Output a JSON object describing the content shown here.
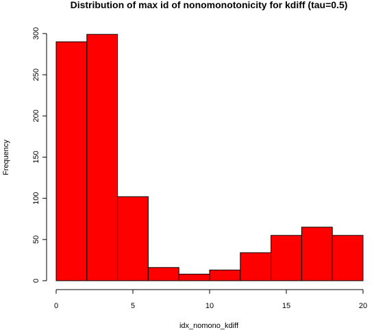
{
  "chart_data": {
    "type": "bar",
    "title": "Distribution of max id of nonomonotonicity for kdiff (tau=0.5)",
    "xlabel": "idx_nomono_kdiff",
    "ylabel": "Frequency",
    "bin_edges": [
      0,
      2,
      4,
      6,
      8,
      10,
      12,
      14,
      16,
      18,
      20
    ],
    "values": [
      290,
      299,
      102,
      16,
      8,
      13,
      34,
      55,
      65,
      55
    ],
    "xlim": [
      0,
      20
    ],
    "ylim": [
      0,
      300
    ],
    "x_ticks": [
      0,
      5,
      10,
      15,
      20
    ],
    "y_ticks": [
      0,
      50,
      100,
      150,
      200,
      250,
      300
    ],
    "bar_color": "#ff0000",
    "grid": false
  }
}
